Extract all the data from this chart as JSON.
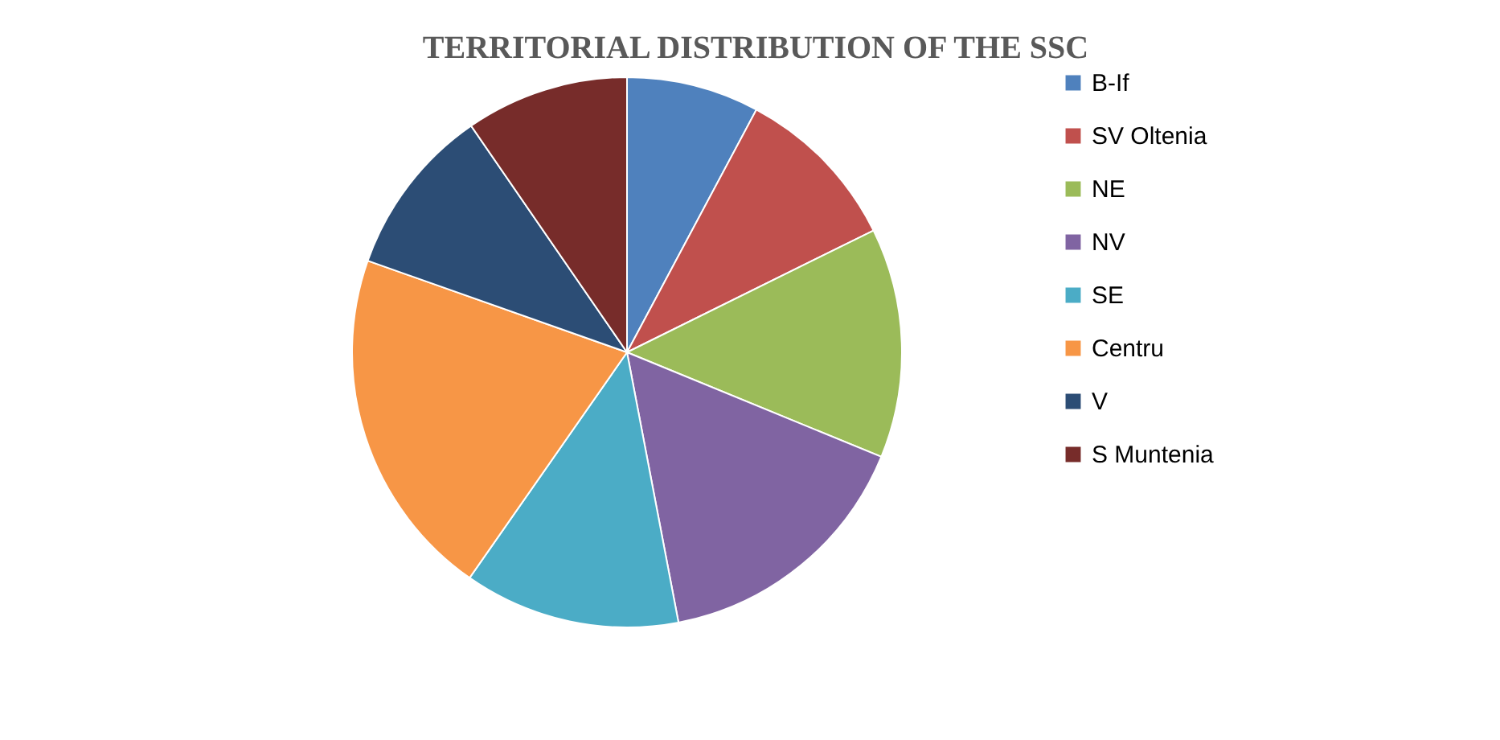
{
  "chart_data": {
    "type": "pie",
    "title": "TERRITORIAL DISTRIBUTION OF THE SSC",
    "categories": [
      "B-If",
      "SV Oltenia",
      "NE",
      "NV",
      "SE",
      "Centru",
      "V",
      "S Muntenia"
    ],
    "values": [
      7.8,
      9.9,
      13.5,
      15.8,
      12.7,
      20.7,
      10.0,
      9.6
    ],
    "colors": [
      "#4f81bd",
      "#c0504d",
      "#9bbb59",
      "#8064a2",
      "#4bacc6",
      "#f79646",
      "#2c4d75",
      "#772c2a"
    ],
    "legend": "right"
  }
}
